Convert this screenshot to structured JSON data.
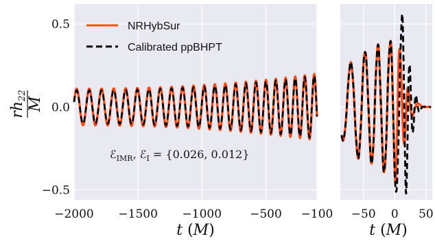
{
  "chart_data": [
    {
      "type": "line",
      "panel": "inspiral",
      "xlabel": "t (M)",
      "ylabel": "rh22 / M",
      "xlim": [
        -2000,
        -100
      ],
      "ylim": [
        -0.56,
        0.62
      ],
      "xticks": [
        -2000,
        -1500,
        -1000,
        -500,
        -100
      ],
      "xtick_labels": [
        "−2000",
        "−1500",
        "−1000",
        "−500",
        "−100"
      ],
      "yticks": [
        0.5,
        0.0,
        -0.5
      ],
      "ytick_labels": [
        "0.5",
        "0.0",
        "−0.5"
      ],
      "grid": true,
      "background": "#e9e9f2",
      "legend": {
        "position": "top-left",
        "entries": [
          {
            "label": "NRHybSur",
            "color": "#ff4a14",
            "style": "solid"
          },
          {
            "label": "Calibrated ppBHPT",
            "color": "#000000",
            "style": "dashed"
          }
        ]
      },
      "annotation": {
        "label": "ℰ",
        "sub1": "IMR",
        "sub2": "I",
        "value": "= {0.026, 0.012}"
      },
      "series": [
        {
          "name": "NRHybSur",
          "color": "#ff4a14",
          "amplitude_start": 0.11,
          "amplitude_end": 0.2,
          "cycles": 22.5,
          "x_start": -2000,
          "x_end": -100
        },
        {
          "name": "Calibrated ppBHPT",
          "color": "#000000",
          "amplitude_start": 0.1,
          "amplitude_end": 0.19,
          "cycles": 22.5,
          "x_start": -2000,
          "x_end": -100
        }
      ]
    },
    {
      "type": "line",
      "panel": "merger-ringdown",
      "xlabel": "t (M)",
      "xlim": [
        -87,
        60
      ],
      "ylim": [
        -0.56,
        0.62
      ],
      "xticks": [
        -50,
        0,
        50
      ],
      "xtick_labels": [
        "−50",
        "0",
        "50"
      ],
      "grid": true,
      "series": [
        {
          "name": "NRHybSur",
          "color": "#ff4a14",
          "points": [
            [
              -85,
              -0.17
            ],
            [
              -82,
              -0.2
            ],
            [
              -78,
              -0.08
            ],
            [
              -74,
              0.16
            ],
            [
              -70,
              0.27
            ],
            [
              -66,
              0.12
            ],
            [
              -62,
              -0.18
            ],
            [
              -58,
              -0.31
            ],
            [
              -54,
              -0.1
            ],
            [
              -50,
              0.26
            ],
            [
              -46,
              0.31
            ],
            [
              -42,
              0.0
            ],
            [
              -38,
              -0.33
            ],
            [
              -34,
              -0.22
            ],
            [
              -30,
              0.21
            ],
            [
              -26,
              0.37
            ],
            [
              -22,
              0.01
            ],
            [
              -18,
              -0.38
            ],
            [
              -14,
              -0.25
            ],
            [
              -10,
              0.24
            ],
            [
              -6,
              0.39
            ],
            [
              -3,
              0.05
            ],
            [
              0,
              -0.4
            ],
            [
              2,
              -0.42
            ],
            [
              4,
              -0.12
            ],
            [
              6,
              0.25
            ],
            [
              8,
              0.35
            ],
            [
              10,
              0.22
            ],
            [
              12,
              0.0
            ],
            [
              14,
              -0.2
            ],
            [
              16,
              -0.2
            ],
            [
              18,
              -0.05
            ],
            [
              20,
              0.1
            ],
            [
              22,
              0.1
            ],
            [
              24,
              0.02
            ],
            [
              27,
              -0.05
            ],
            [
              30,
              -0.04
            ],
            [
              34,
              0.01
            ],
            [
              38,
              0.02
            ],
            [
              44,
              0.0
            ],
            [
              52,
              0.0
            ],
            [
              58,
              0.0
            ]
          ]
        },
        {
          "name": "Calibrated ppBHPT",
          "color": "#000000",
          "points": [
            [
              -85,
              -0.17
            ],
            [
              -82,
              -0.2
            ],
            [
              -78,
              -0.08
            ],
            [
              -74,
              0.16
            ],
            [
              -70,
              0.27
            ],
            [
              -66,
              0.12
            ],
            [
              -62,
              -0.18
            ],
            [
              -58,
              -0.31
            ],
            [
              -54,
              -0.1
            ],
            [
              -50,
              0.26
            ],
            [
              -46,
              0.31
            ],
            [
              -42,
              0.0
            ],
            [
              -38,
              -0.33
            ],
            [
              -34,
              -0.22
            ],
            [
              -30,
              0.21
            ],
            [
              -26,
              0.37
            ],
            [
              -22,
              0.01
            ],
            [
              -18,
              -0.38
            ],
            [
              -14,
              -0.25
            ],
            [
              -10,
              0.24
            ],
            [
              -6,
              0.39
            ],
            [
              -3,
              0.05
            ],
            [
              0,
              -0.4
            ],
            [
              3,
              -0.5
            ],
            [
              6,
              -0.2
            ],
            [
              9,
              0.3
            ],
            [
              12,
              0.56
            ],
            [
              14,
              0.3
            ],
            [
              16,
              -0.2
            ],
            [
              18,
              -0.52
            ],
            [
              20,
              -0.3
            ],
            [
              22,
              0.15
            ],
            [
              24,
              0.25
            ],
            [
              26,
              0.06
            ],
            [
              28,
              -0.14
            ],
            [
              30,
              -0.12
            ],
            [
              32,
              0.02
            ],
            [
              34,
              0.07
            ],
            [
              36,
              0.02
            ],
            [
              39,
              -0.03
            ],
            [
              44,
              0.0
            ],
            [
              52,
              0.0
            ],
            [
              58,
              0.0
            ]
          ]
        }
      ]
    }
  ]
}
